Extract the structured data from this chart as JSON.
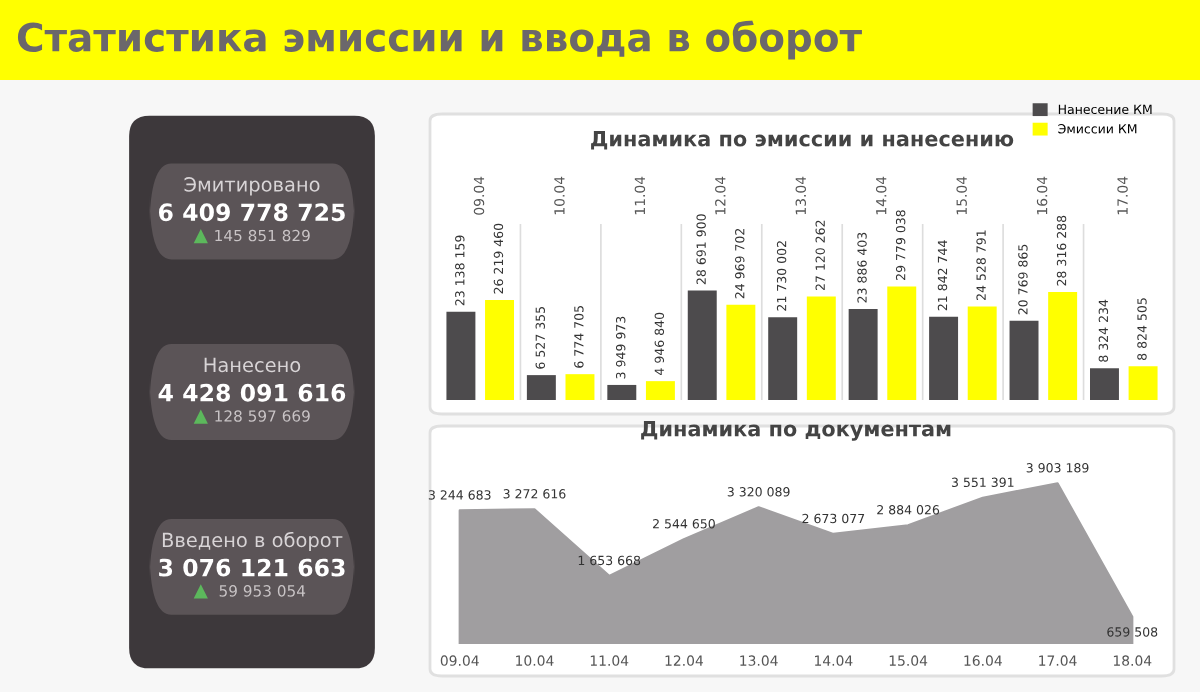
{
  "chart_data": [
    {
      "type": "other",
      "title": "Статистика эмиссии и ввода в оборот",
      "annotations": [
        "Эмитировано",
        "6 409 778 725",
        "145 851 829",
        "Нанесено",
        "4 428 091 616",
        "128 597 669",
        "Введено в оборот",
        "3 076 121 663",
        "59 953 054"
      ]
    },
    {
      "type": "bar",
      "title": "Динамика по эмиссии и нанесению",
      "categories": [
        "09.04",
        "10.04",
        "11.04",
        "12.04",
        "13.04",
        "14.04",
        "15.04",
        "16.04",
        "17.04"
      ],
      "series": [
        {
          "name": "Нанесение КМ",
          "color": "#4d4b4d",
          "values": [
            23138159,
            6527355,
            3949973,
            28691900,
            21730002,
            23886403,
            21842744,
            20769865,
            8324234
          ]
        },
        {
          "name": "Эмиссии КМ",
          "color": "#ffff00",
          "values": [
            26219460,
            6774705,
            4946840,
            24969702,
            27120262,
            29779038,
            24528791,
            28316288,
            8824505
          ]
        }
      ],
      "data_labels": true,
      "legend": "top right",
      "tick_labels": "x"
    },
    {
      "type": "area",
      "title": "Динамика по документам",
      "categories": [
        "09.04",
        "10.04",
        "11.04",
        "12.04",
        "13.04",
        "14.04",
        "15.04",
        "16.04",
        "17.04",
        "18.04"
      ],
      "color": "#a09ea0",
      "values": [
        3244683,
        3272616,
        1653668,
        2544650,
        3320089,
        2673077,
        2884026,
        3551391,
        3903189,
        659508
      ],
      "data_labels": true,
      "tick_labels": "x"
    }
  ]
}
